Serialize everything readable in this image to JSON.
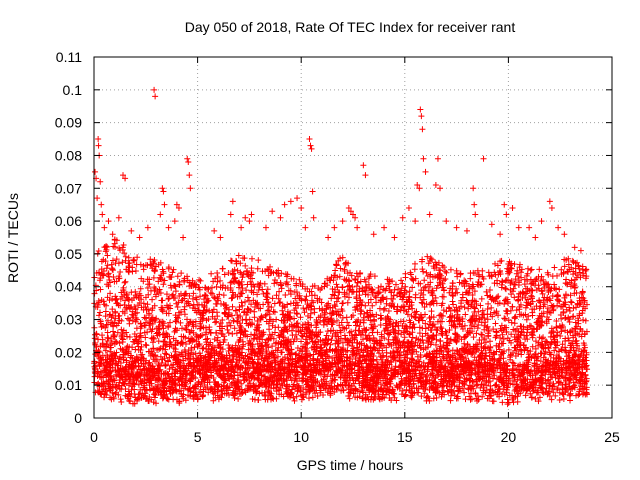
{
  "chart_data": {
    "type": "scatter",
    "title": "Day 050 of 2018, Rate Of TEC Index for receiver rant",
    "xlabel": "GPS time / hours",
    "ylabel": "ROTI / TECUs",
    "xlim": [
      0,
      25
    ],
    "ylim": [
      0,
      0.11
    ],
    "grid": true,
    "marker": "plus",
    "color": "#ff0000",
    "x_ticks": [
      0,
      5,
      10,
      15,
      20,
      25
    ],
    "x_tick_labels": [
      "0",
      "5",
      "10",
      "15",
      "20",
      "25"
    ],
    "y_ticks": [
      0,
      0.01,
      0.02,
      0.03,
      0.04,
      0.05,
      0.06,
      0.07,
      0.08,
      0.09,
      0.1,
      0.11
    ],
    "y_tick_labels": [
      "0",
      "0.01",
      "0.02",
      "0.03",
      "0.04",
      "0.05",
      "0.06",
      "0.07",
      "0.08",
      "0.09",
      "0.1",
      "0.11"
    ],
    "series": [
      {
        "name": "ROTI",
        "bulk_range": [
          0,
          23.8
        ],
        "bulk_envelope": [
          {
            "x": 0,
            "min": 0.006,
            "max": 0.05
          },
          {
            "x": 1,
            "min": 0.005,
            "max": 0.055
          },
          {
            "x": 2,
            "min": 0.004,
            "max": 0.05
          },
          {
            "x": 3,
            "min": 0.004,
            "max": 0.048
          },
          {
            "x": 4,
            "min": 0.004,
            "max": 0.045
          },
          {
            "x": 5,
            "min": 0.005,
            "max": 0.042
          },
          {
            "x": 6,
            "min": 0.005,
            "max": 0.045
          },
          {
            "x": 7,
            "min": 0.005,
            "max": 0.05
          },
          {
            "x": 8,
            "min": 0.005,
            "max": 0.048
          },
          {
            "x": 9,
            "min": 0.005,
            "max": 0.045
          },
          {
            "x": 10,
            "min": 0.005,
            "max": 0.042
          },
          {
            "x": 11,
            "min": 0.006,
            "max": 0.04
          },
          {
            "x": 12,
            "min": 0.006,
            "max": 0.05
          },
          {
            "x": 13,
            "min": 0.005,
            "max": 0.045
          },
          {
            "x": 14,
            "min": 0.005,
            "max": 0.042
          },
          {
            "x": 15,
            "min": 0.005,
            "max": 0.045
          },
          {
            "x": 16,
            "min": 0.005,
            "max": 0.05
          },
          {
            "x": 17,
            "min": 0.005,
            "max": 0.046
          },
          {
            "x": 18,
            "min": 0.005,
            "max": 0.044
          },
          {
            "x": 19,
            "min": 0.005,
            "max": 0.046
          },
          {
            "x": 20,
            "min": 0.004,
            "max": 0.05
          },
          {
            "x": 21,
            "min": 0.005,
            "max": 0.046
          },
          {
            "x": 22,
            "min": 0.005,
            "max": 0.045
          },
          {
            "x": 23,
            "min": 0.005,
            "max": 0.05
          },
          {
            "x": 23.8,
            "min": 0.006,
            "max": 0.045
          }
        ],
        "outliers": [
          {
            "x": 0.05,
            "y": 0.075
          },
          {
            "x": 0.1,
            "y": 0.073
          },
          {
            "x": 0.15,
            "y": 0.067
          },
          {
            "x": 0.2,
            "y": 0.085
          },
          {
            "x": 0.22,
            "y": 0.083
          },
          {
            "x": 0.25,
            "y": 0.08
          },
          {
            "x": 0.3,
            "y": 0.072
          },
          {
            "x": 0.35,
            "y": 0.065
          },
          {
            "x": 0.4,
            "y": 0.062
          },
          {
            "x": 0.5,
            "y": 0.058
          },
          {
            "x": 0.7,
            "y": 0.06
          },
          {
            "x": 0.9,
            "y": 0.056
          },
          {
            "x": 1.2,
            "y": 0.061
          },
          {
            "x": 1.4,
            "y": 0.074
          },
          {
            "x": 1.5,
            "y": 0.073
          },
          {
            "x": 1.8,
            "y": 0.057
          },
          {
            "x": 2.2,
            "y": 0.055
          },
          {
            "x": 2.6,
            "y": 0.058
          },
          {
            "x": 2.9,
            "y": 0.1
          },
          {
            "x": 2.95,
            "y": 0.098
          },
          {
            "x": 3.2,
            "y": 0.062
          },
          {
            "x": 3.3,
            "y": 0.07
          },
          {
            "x": 3.35,
            "y": 0.069
          },
          {
            "x": 3.4,
            "y": 0.065
          },
          {
            "x": 3.6,
            "y": 0.058
          },
          {
            "x": 3.9,
            "y": 0.06
          },
          {
            "x": 4.0,
            "y": 0.065
          },
          {
            "x": 4.1,
            "y": 0.064
          },
          {
            "x": 4.3,
            "y": 0.055
          },
          {
            "x": 4.5,
            "y": 0.079
          },
          {
            "x": 4.55,
            "y": 0.078
          },
          {
            "x": 4.6,
            "y": 0.074
          },
          {
            "x": 4.65,
            "y": 0.07
          },
          {
            "x": 5.8,
            "y": 0.057
          },
          {
            "x": 6.1,
            "y": 0.055
          },
          {
            "x": 6.6,
            "y": 0.062
          },
          {
            "x": 6.7,
            "y": 0.066
          },
          {
            "x": 7.1,
            "y": 0.058
          },
          {
            "x": 7.3,
            "y": 0.061
          },
          {
            "x": 7.5,
            "y": 0.06
          },
          {
            "x": 7.6,
            "y": 0.062
          },
          {
            "x": 8.3,
            "y": 0.058
          },
          {
            "x": 8.6,
            "y": 0.063
          },
          {
            "x": 9.0,
            "y": 0.061
          },
          {
            "x": 9.2,
            "y": 0.065
          },
          {
            "x": 9.5,
            "y": 0.066
          },
          {
            "x": 9.8,
            "y": 0.067
          },
          {
            "x": 10.0,
            "y": 0.064
          },
          {
            "x": 10.2,
            "y": 0.058
          },
          {
            "x": 10.4,
            "y": 0.085
          },
          {
            "x": 10.45,
            "y": 0.083
          },
          {
            "x": 10.5,
            "y": 0.082
          },
          {
            "x": 10.55,
            "y": 0.069
          },
          {
            "x": 10.6,
            "y": 0.061
          },
          {
            "x": 11.3,
            "y": 0.055
          },
          {
            "x": 11.6,
            "y": 0.058
          },
          {
            "x": 12.0,
            "y": 0.06
          },
          {
            "x": 12.3,
            "y": 0.064
          },
          {
            "x": 12.4,
            "y": 0.063
          },
          {
            "x": 12.5,
            "y": 0.062
          },
          {
            "x": 12.6,
            "y": 0.061
          },
          {
            "x": 12.7,
            "y": 0.058
          },
          {
            "x": 13.0,
            "y": 0.077
          },
          {
            "x": 13.1,
            "y": 0.074
          },
          {
            "x": 13.5,
            "y": 0.056
          },
          {
            "x": 14.0,
            "y": 0.058
          },
          {
            "x": 14.5,
            "y": 0.055
          },
          {
            "x": 14.9,
            "y": 0.061
          },
          {
            "x": 15.2,
            "y": 0.064
          },
          {
            "x": 15.5,
            "y": 0.06
          },
          {
            "x": 15.6,
            "y": 0.071
          },
          {
            "x": 15.7,
            "y": 0.07
          },
          {
            "x": 15.75,
            "y": 0.094
          },
          {
            "x": 15.8,
            "y": 0.092
          },
          {
            "x": 15.85,
            "y": 0.088
          },
          {
            "x": 15.9,
            "y": 0.079
          },
          {
            "x": 16.0,
            "y": 0.075
          },
          {
            "x": 16.2,
            "y": 0.062
          },
          {
            "x": 16.5,
            "y": 0.071
          },
          {
            "x": 16.6,
            "y": 0.079
          },
          {
            "x": 16.7,
            "y": 0.07
          },
          {
            "x": 17.0,
            "y": 0.06
          },
          {
            "x": 17.5,
            "y": 0.058
          },
          {
            "x": 18.0,
            "y": 0.057
          },
          {
            "x": 18.3,
            "y": 0.07
          },
          {
            "x": 18.35,
            "y": 0.065
          },
          {
            "x": 18.4,
            "y": 0.062
          },
          {
            "x": 18.8,
            "y": 0.079
          },
          {
            "x": 19.2,
            "y": 0.059
          },
          {
            "x": 19.6,
            "y": 0.056
          },
          {
            "x": 19.8,
            "y": 0.065
          },
          {
            "x": 19.9,
            "y": 0.062
          },
          {
            "x": 20.2,
            "y": 0.064
          },
          {
            "x": 20.5,
            "y": 0.058
          },
          {
            "x": 21.0,
            "y": 0.058
          },
          {
            "x": 21.3,
            "y": 0.055
          },
          {
            "x": 21.6,
            "y": 0.06
          },
          {
            "x": 22.0,
            "y": 0.066
          },
          {
            "x": 22.1,
            "y": 0.064
          },
          {
            "x": 22.4,
            "y": 0.058
          },
          {
            "x": 22.7,
            "y": 0.056
          },
          {
            "x": 23.2,
            "y": 0.052
          },
          {
            "x": 23.5,
            "y": 0.051
          }
        ]
      }
    ]
  }
}
